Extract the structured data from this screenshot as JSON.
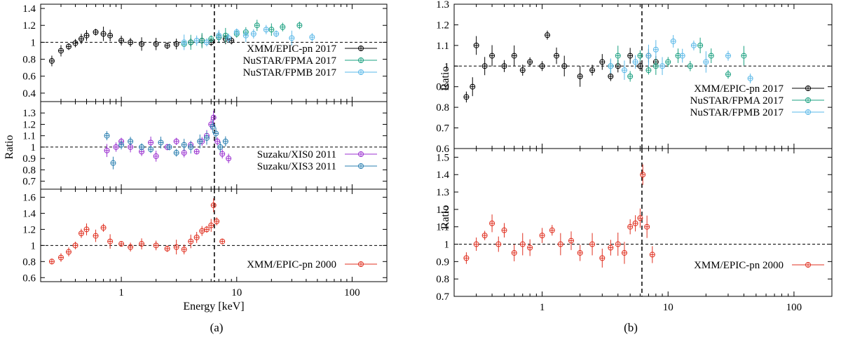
{
  "figure": {
    "caption_a": "(a)",
    "caption_b": "(b)"
  },
  "chart_data": [
    {
      "type": "scatter",
      "panel": "a-top",
      "xscale": "log",
      "xlim": [
        0.2,
        200
      ],
      "ylim": [
        0.3,
        1.45
      ],
      "ylabel": "",
      "xlabel": "",
      "yticks": [
        0.4,
        0.6,
        0.8,
        1,
        1.2,
        1.4
      ],
      "ytick_labels": [
        "0.4",
        "0.6",
        "0.8",
        "1",
        "1.2",
        "1.4"
      ],
      "reference_line": 1.0,
      "vline": 6.4,
      "legend": "bottom-right",
      "series": [
        {
          "name": "XMM/EPIC-pn 2017",
          "color": "#000000",
          "x": [
            0.25,
            0.3,
            0.35,
            0.4,
            0.45,
            0.5,
            0.6,
            0.7,
            0.8,
            1.0,
            1.2,
            1.5,
            2.0,
            2.5,
            3.0,
            4.0,
            5.0,
            6.0,
            7.0,
            8.0,
            9.0
          ],
          "y": [
            0.78,
            0.9,
            0.95,
            0.99,
            1.04,
            1.08,
            1.12,
            1.1,
            1.08,
            1.02,
            1.0,
            0.98,
            0.98,
            0.96,
            0.98,
            1.0,
            1.02,
            1.0,
            1.06,
            1.04,
            1.02
          ]
        },
        {
          "name": "NuSTAR/FPMA 2017",
          "color": "#1aa080",
          "x": [
            3.5,
            4,
            5,
            6,
            7,
            8,
            10,
            12,
            15,
            20,
            25,
            35
          ],
          "y": [
            0.98,
            1.0,
            1.02,
            1.04,
            1.06,
            1.08,
            1.1,
            1.12,
            1.2,
            1.15,
            1.18,
            1.2
          ]
        },
        {
          "name": "NuSTAR/FPMB 2017",
          "color": "#5ab8e8",
          "x": [
            3.5,
            4.5,
            5.5,
            7,
            8.5,
            10,
            12,
            14,
            18,
            22,
            30,
            45
          ],
          "y": [
            1.0,
            1.02,
            1.0,
            1.08,
            1.05,
            1.12,
            1.08,
            1.1,
            1.15,
            1.1,
            1.05,
            1.06
          ]
        }
      ]
    },
    {
      "type": "scatter",
      "panel": "a-middle",
      "xscale": "log",
      "xlim": [
        0.2,
        200
      ],
      "ylim": [
        0.63,
        1.4
      ],
      "ylabel": "Ratio",
      "xlabel": "",
      "yticks": [
        0.7,
        0.8,
        0.9,
        1,
        1.1,
        1.2,
        1.3
      ],
      "ytick_labels": [
        "0.7",
        "0.8",
        "0.9",
        "1",
        "1.1",
        "1.2",
        "1.3"
      ],
      "reference_line": 1.0,
      "vline": 6.4,
      "legend": "bottom-right",
      "series": [
        {
          "name": "Suzaku/XIS0 2011",
          "color": "#9b30d0",
          "x": [
            0.75,
            0.9,
            1.0,
            1.2,
            1.5,
            1.8,
            2.0,
            2.5,
            3.0,
            3.5,
            4.0,
            4.5,
            5.0,
            5.5,
            6.0,
            6.3,
            6.8,
            7.5,
            8.5
          ],
          "y": [
            0.97,
            1.0,
            1.05,
            1.0,
            0.96,
            1.04,
            0.92,
            1.0,
            1.05,
            0.95,
            1.02,
            0.96,
            1.05,
            1.1,
            1.2,
            1.26,
            1.05,
            0.94,
            0.9
          ]
        },
        {
          "name": "Suzaku/XIS3 2011",
          "color": "#2a7fb0",
          "x": [
            0.75,
            0.85,
            1.0,
            1.2,
            1.5,
            1.8,
            2.2,
            2.6,
            3.0,
            3.5,
            4.0,
            4.8,
            5.5,
            6.2,
            6.6,
            7.2,
            8.0
          ],
          "y": [
            1.1,
            0.86,
            1.02,
            1.05,
            1.0,
            0.98,
            1.04,
            1.0,
            0.95,
            1.02,
            1.0,
            1.05,
            1.08,
            1.18,
            1.12,
            1.0,
            1.05
          ]
        }
      ]
    },
    {
      "type": "scatter",
      "panel": "a-bottom",
      "xscale": "log",
      "xlim": [
        0.2,
        200
      ],
      "ylim": [
        0.55,
        1.7
      ],
      "ylabel": "",
      "xlabel": "Energy [keV]",
      "xticks": [
        1,
        10,
        100
      ],
      "xtick_labels": [
        "1",
        "10",
        "100"
      ],
      "yticks": [
        0.6,
        0.8,
        1,
        1.2,
        1.4,
        1.6
      ],
      "ytick_labels": [
        "0.6",
        "0.8",
        "1",
        "1.2",
        "1.4",
        "1.6"
      ],
      "reference_line": 1.0,
      "vline": 6.4,
      "legend": "bottom-right",
      "series": [
        {
          "name": "XMM/EPIC-pn 2000",
          "color": "#e03020",
          "x": [
            0.25,
            0.3,
            0.35,
            0.4,
            0.45,
            0.5,
            0.6,
            0.7,
            0.8,
            1.0,
            1.2,
            1.5,
            2.0,
            2.5,
            3.0,
            3.5,
            4.0,
            4.5,
            5.0,
            5.5,
            6.0,
            6.3,
            6.7,
            7.5
          ],
          "y": [
            0.8,
            0.85,
            0.92,
            1.0,
            1.15,
            1.2,
            1.12,
            1.22,
            1.05,
            1.02,
            0.98,
            1.02,
            1.0,
            0.96,
            0.98,
            0.95,
            1.05,
            1.1,
            1.18,
            1.2,
            1.25,
            1.5,
            1.3,
            1.05
          ]
        }
      ]
    },
    {
      "type": "scatter",
      "panel": "b-top",
      "xscale": "log",
      "xlim": [
        0.2,
        200
      ],
      "ylim": [
        0.6,
        1.3
      ],
      "ylabel": "Ratio",
      "xlabel": "",
      "yticks": [
        0.6,
        0.7,
        0.8,
        0.9,
        1,
        1.1,
        1.2,
        1.3
      ],
      "ytick_labels": [
        "0.6",
        "0.7",
        "0.8",
        "0.9",
        "1",
        "1.1",
        "1.2",
        "1.3"
      ],
      "reference_line": 1.0,
      "vline": 6.2,
      "legend": "bottom-right",
      "series": [
        {
          "name": "XMM/EPIC-pn 2017",
          "color": "#000000",
          "x": [
            0.25,
            0.28,
            0.3,
            0.35,
            0.4,
            0.5,
            0.6,
            0.7,
            0.8,
            1.0,
            1.1,
            1.3,
            1.5,
            2.0,
            2.5,
            3.0,
            3.5,
            4.0,
            5.0,
            6.0,
            7.0,
            8.0
          ],
          "y": [
            0.85,
            0.9,
            1.1,
            1.0,
            1.05,
            1.0,
            1.05,
            0.98,
            1.02,
            1.0,
            1.15,
            1.05,
            1.0,
            0.95,
            0.98,
            1.02,
            0.95,
            1.0,
            1.05,
            1.0,
            1.05,
            1.02
          ]
        },
        {
          "name": "NuSTAR/FPMA 2017",
          "color": "#1aa080",
          "x": [
            3.5,
            4.0,
            5.0,
            6.0,
            7.0,
            8.0,
            10,
            12,
            15,
            18,
            22,
            30,
            40
          ],
          "y": [
            1.0,
            1.05,
            0.95,
            1.05,
            0.98,
            1.0,
            1.02,
            1.05,
            1.0,
            1.1,
            1.05,
            0.96,
            1.05
          ]
        },
        {
          "name": "NuSTAR/FPMB 2017",
          "color": "#5ab8e8",
          "x": [
            3.5,
            4.5,
            5.5,
            7.0,
            8.0,
            9.0,
            11,
            13,
            16,
            20,
            30,
            45
          ],
          "y": [
            1.0,
            0.98,
            1.02,
            1.05,
            1.08,
            1.0,
            1.12,
            1.05,
            1.1,
            1.02,
            1.05,
            0.94
          ]
        }
      ]
    },
    {
      "type": "scatter",
      "panel": "b-bottom",
      "xscale": "log",
      "xlim": [
        0.2,
        200
      ],
      "ylim": [
        0.7,
        1.55
      ],
      "ylabel": "Ratio",
      "xlabel": "",
      "xticks": [
        1,
        10,
        100
      ],
      "xtick_labels": [
        "1",
        "10",
        "100"
      ],
      "yticks": [
        0.7,
        0.8,
        0.9,
        1,
        1.1,
        1.2,
        1.3,
        1.4,
        1.5
      ],
      "ytick_labels": [
        "0.7",
        "0.8",
        "0.9",
        "1",
        "1.1",
        "1.2",
        "1.3",
        "1.4",
        "1.5"
      ],
      "reference_line": 1.0,
      "vline": 6.2,
      "legend": "bottom-right",
      "series": [
        {
          "name": "XMM/EPIC-pn 2000",
          "color": "#e03020",
          "x": [
            0.25,
            0.3,
            0.35,
            0.4,
            0.45,
            0.5,
            0.6,
            0.7,
            0.8,
            1.0,
            1.2,
            1.4,
            1.7,
            2.0,
            2.5,
            3.0,
            3.5,
            4.0,
            4.5,
            5.0,
            5.5,
            6.0,
            6.3,
            6.8,
            7.5
          ],
          "y": [
            0.92,
            1.0,
            1.05,
            1.12,
            1.0,
            1.08,
            0.95,
            1.0,
            0.98,
            1.05,
            1.08,
            1.0,
            1.02,
            0.95,
            1.0,
            0.92,
            0.98,
            1.0,
            0.95,
            1.1,
            1.12,
            1.15,
            1.4,
            1.1,
            0.94
          ]
        }
      ]
    }
  ]
}
